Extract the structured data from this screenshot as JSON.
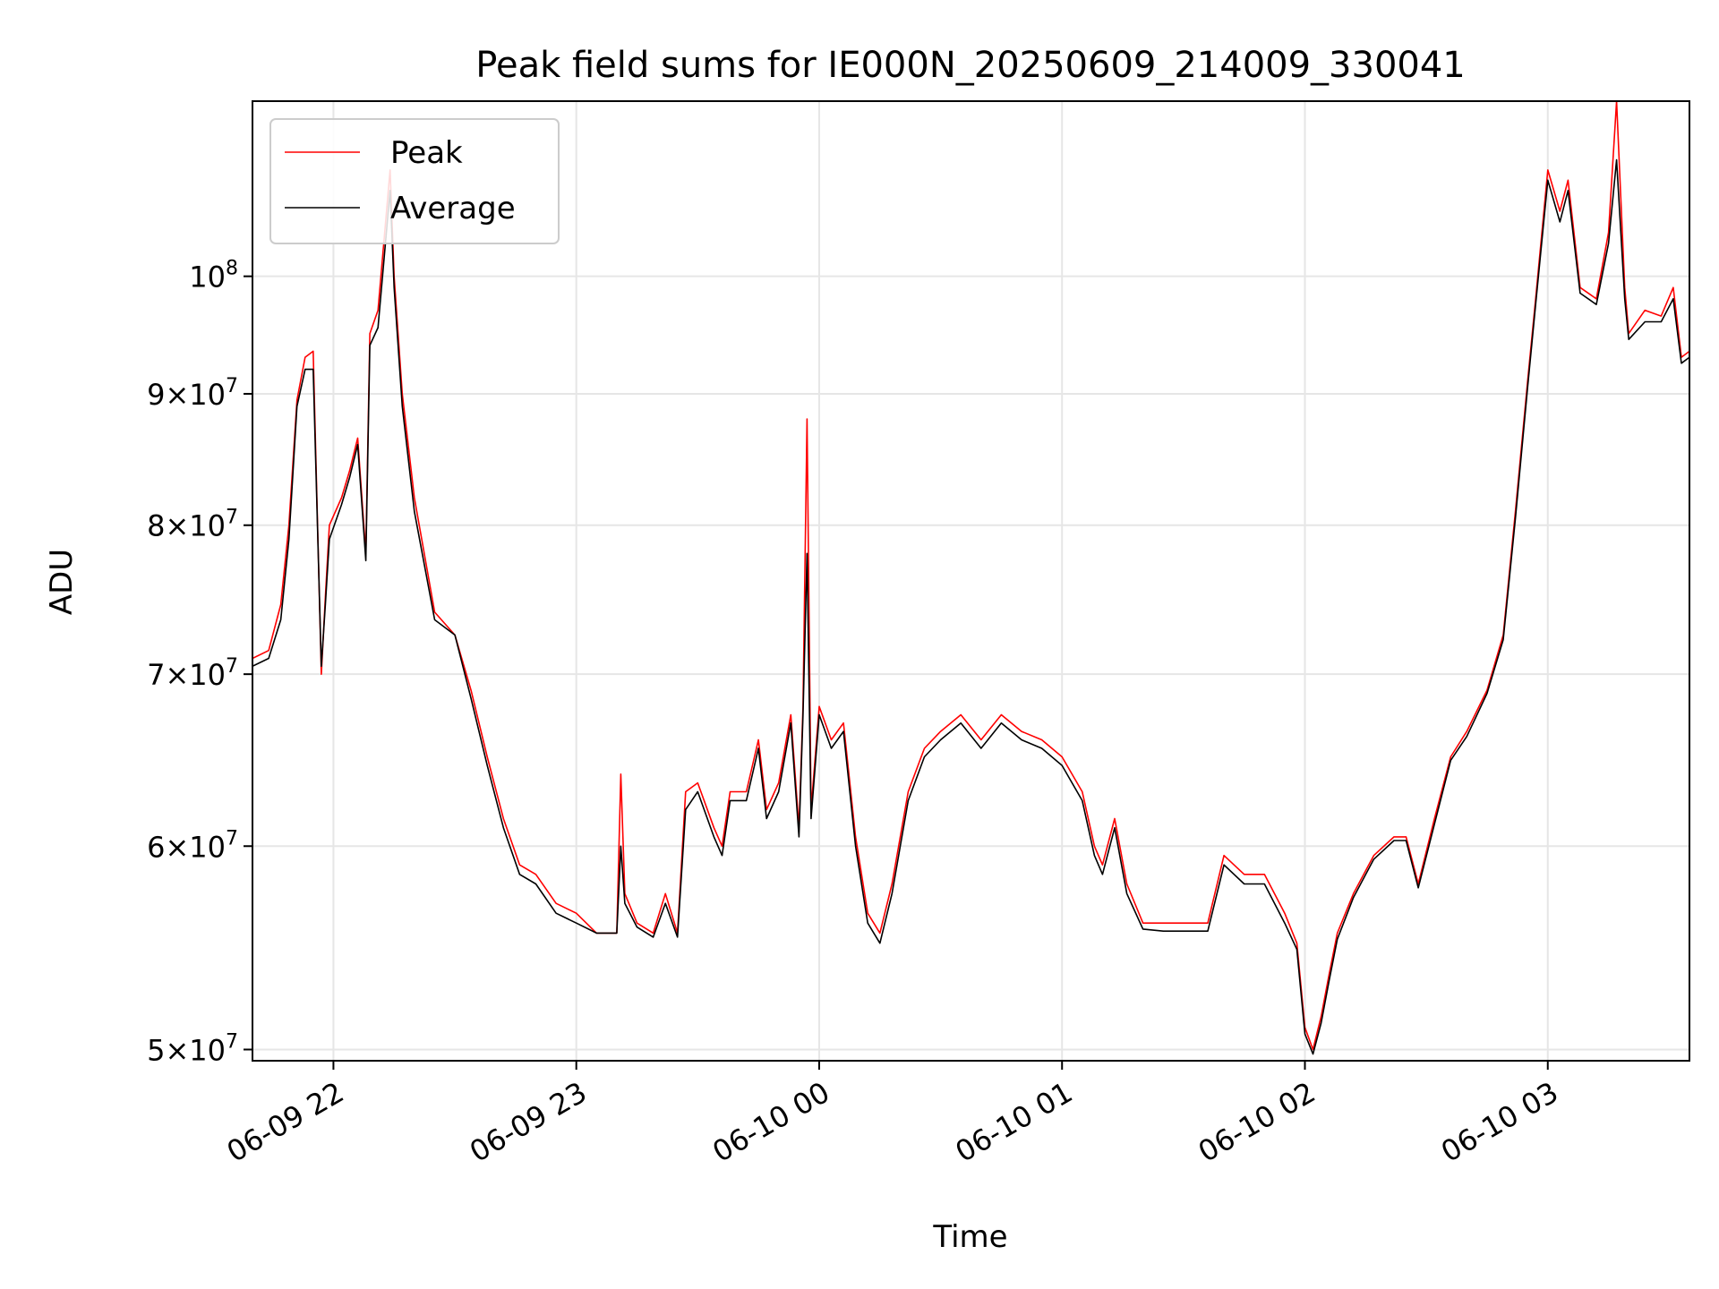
{
  "chart_data": {
    "type": "line",
    "title": "Peak field sums for IE000N_20250609_214009_330041",
    "xlabel": "Time",
    "ylabel": "ADU",
    "yscale": "log",
    "ylim": [
      49500000,
      117000000
    ],
    "xlim": [
      "2025-06-09 21:40",
      "2025-06-10 03:35"
    ],
    "grid": true,
    "legend": "top-left",
    "x_ticks": [
      {
        "value": "2025-06-09 22:00",
        "label": "06-09 22"
      },
      {
        "value": "2025-06-09 23:00",
        "label": "06-09 23"
      },
      {
        "value": "2025-06-10 00:00",
        "label": "06-10 00"
      },
      {
        "value": "2025-06-10 01:00",
        "label": "06-10 01"
      },
      {
        "value": "2025-06-10 02:00",
        "label": "06-10 02"
      },
      {
        "value": "2025-06-10 03:00",
        "label": "06-10 03"
      }
    ],
    "y_ticks": [
      {
        "value": 50000000,
        "mant": "5",
        "exp": "7"
      },
      {
        "value": 60000000,
        "mant": "6",
        "exp": "7"
      },
      {
        "value": 70000000,
        "mant": "7",
        "exp": "7"
      },
      {
        "value": 80000000,
        "mant": "8",
        "exp": "7"
      },
      {
        "value": 90000000,
        "mant": "9",
        "exp": "7"
      },
      {
        "value": 100000000,
        "mant": "",
        "exp": "8"
      }
    ],
    "x": [
      "2025-06-09 21:40",
      "2025-06-09 21:44",
      "2025-06-09 21:47",
      "2025-06-09 21:49",
      "2025-06-09 21:51",
      "2025-06-09 21:53",
      "2025-06-09 21:55",
      "2025-06-09 21:57",
      "2025-06-09 21:58",
      "2025-06-09 21:59",
      "2025-06-09 22:02",
      "2025-06-09 22:04",
      "2025-06-09 22:06",
      "2025-06-09 22:08",
      "2025-06-09 22:09",
      "2025-06-09 22:11",
      "2025-06-09 22:14",
      "2025-06-09 22:15",
      "2025-06-09 22:17",
      "2025-06-09 22:20",
      "2025-06-09 22:25",
      "2025-06-09 22:30",
      "2025-06-09 22:34",
      "2025-06-09 22:38",
      "2025-06-09 22:42",
      "2025-06-09 22:46",
      "2025-06-09 22:50",
      "2025-06-09 22:55",
      "2025-06-09 23:00",
      "2025-06-09 23:05",
      "2025-06-09 23:10",
      "2025-06-09 23:11",
      "2025-06-09 23:12",
      "2025-06-09 23:15",
      "2025-06-09 23:19",
      "2025-06-09 23:22",
      "2025-06-09 23:25",
      "2025-06-09 23:27",
      "2025-06-09 23:30",
      "2025-06-09 23:34",
      "2025-06-09 23:36",
      "2025-06-09 23:38",
      "2025-06-09 23:42",
      "2025-06-09 23:45",
      "2025-06-09 23:47",
      "2025-06-09 23:50",
      "2025-06-09 23:53",
      "2025-06-09 23:55",
      "2025-06-09 23:56",
      "2025-06-09 23:57",
      "2025-06-09 23:58",
      "2025-06-10 00:00",
      "2025-06-10 00:03",
      "2025-06-10 00:06",
      "2025-06-10 00:09",
      "2025-06-10 00:12",
      "2025-06-10 00:15",
      "2025-06-10 00:18",
      "2025-06-10 00:22",
      "2025-06-10 00:26",
      "2025-06-10 00:30",
      "2025-06-10 00:35",
      "2025-06-10 00:40",
      "2025-06-10 00:45",
      "2025-06-10 00:50",
      "2025-06-10 00:55",
      "2025-06-10 01:00",
      "2025-06-10 01:05",
      "2025-06-10 01:08",
      "2025-06-10 01:10",
      "2025-06-10 01:13",
      "2025-06-10 01:16",
      "2025-06-10 01:20",
      "2025-06-10 01:25",
      "2025-06-10 01:30",
      "2025-06-10 01:36",
      "2025-06-10 01:40",
      "2025-06-10 01:45",
      "2025-06-10 01:50",
      "2025-06-10 01:55",
      "2025-06-10 01:58",
      "2025-06-10 02:00",
      "2025-06-10 02:02",
      "2025-06-10 02:04",
      "2025-06-10 02:06",
      "2025-06-10 02:08",
      "2025-06-10 02:12",
      "2025-06-10 02:17",
      "2025-06-10 02:22",
      "2025-06-10 02:25",
      "2025-06-10 02:28",
      "2025-06-10 02:32",
      "2025-06-10 02:36",
      "2025-06-10 02:40",
      "2025-06-10 02:45",
      "2025-06-10 02:49",
      "2025-06-10 02:52",
      "2025-06-10 02:55",
      "2025-06-10 02:57",
      "2025-06-10 03:00",
      "2025-06-10 03:03",
      "2025-06-10 03:05",
      "2025-06-10 03:08",
      "2025-06-10 03:12",
      "2025-06-10 03:15",
      "2025-06-10 03:17",
      "2025-06-10 03:19",
      "2025-06-10 03:20",
      "2025-06-10 03:24",
      "2025-06-10 03:28",
      "2025-06-10 03:31",
      "2025-06-10 03:33",
      "2025-06-10 03:35"
    ],
    "series": [
      {
        "name": "Peak",
        "color": "#ff0000",
        "values": [
          71000000,
          71500000,
          74500000,
          80000000,
          89500000,
          93000000,
          93500000,
          70000000,
          75000000,
          80000000,
          82000000,
          84000000,
          86500000,
          78000000,
          95000000,
          97000000,
          110000000,
          100000000,
          90000000,
          82000000,
          74000000,
          72500000,
          69000000,
          65000000,
          61500000,
          59000000,
          58500000,
          57000000,
          56500000,
          55500000,
          55500000,
          64000000,
          57500000,
          56000000,
          55500000,
          57500000,
          55500000,
          63000000,
          63500000,
          61000000,
          60000000,
          63000000,
          63000000,
          66000000,
          62000000,
          63500000,
          67500000,
          61000000,
          68000000,
          88000000,
          62000000,
          68000000,
          66000000,
          67000000,
          60500000,
          56500000,
          55500000,
          58000000,
          63000000,
          65500000,
          66500000,
          67500000,
          66000000,
          67500000,
          66500000,
          66000000,
          65000000,
          63000000,
          60000000,
          59000000,
          61500000,
          58000000,
          56000000,
          56000000,
          56000000,
          56000000,
          59500000,
          58500000,
          58500000,
          56500000,
          55000000,
          51000000,
          50000000,
          51500000,
          53500000,
          55500000,
          57500000,
          59500000,
          60500000,
          60500000,
          58000000,
          61500000,
          65000000,
          66500000,
          69000000,
          72500000,
          81000000,
          91000000,
          98000000,
          110000000,
          106000000,
          109000000,
          99000000,
          98000000,
          104000000,
          117000000,
          99000000,
          95000000,
          97000000,
          96500000,
          99000000,
          93000000,
          93500000
        ]
      },
      {
        "name": "Average",
        "color": "#000000",
        "values": [
          70500000,
          71000000,
          73500000,
          79000000,
          89000000,
          92000000,
          92000000,
          70500000,
          74500000,
          79000000,
          81500000,
          83500000,
          86000000,
          77500000,
          94000000,
          95500000,
          108000000,
          99000000,
          89000000,
          81000000,
          73500000,
          72500000,
          68500000,
          64500000,
          61000000,
          58500000,
          58000000,
          56500000,
          56000000,
          55500000,
          55500000,
          60000000,
          57000000,
          55800000,
          55300000,
          57000000,
          55300000,
          62000000,
          63000000,
          60500000,
          59500000,
          62500000,
          62500000,
          65500000,
          61500000,
          63000000,
          67000000,
          60500000,
          67500000,
          78000000,
          61500000,
          67500000,
          65500000,
          66500000,
          60000000,
          56000000,
          55000000,
          57500000,
          62500000,
          65000000,
          66000000,
          67000000,
          65500000,
          67000000,
          66000000,
          65500000,
          64500000,
          62500000,
          59500000,
          58500000,
          61000000,
          57500000,
          55700000,
          55600000,
          55600000,
          55600000,
          59000000,
          58000000,
          58000000,
          56000000,
          54700000,
          50700000,
          49800000,
          51200000,
          53200000,
          55200000,
          57300000,
          59300000,
          60300000,
          60300000,
          57800000,
          61200000,
          64800000,
          66200000,
          68800000,
          72200000,
          80500000,
          90500000,
          97500000,
          109000000,
          105000000,
          108000000,
          98500000,
          97500000,
          103000000,
          111000000,
          98000000,
          94500000,
          96000000,
          96000000,
          98000000,
          92500000,
          93000000
        ]
      }
    ]
  }
}
